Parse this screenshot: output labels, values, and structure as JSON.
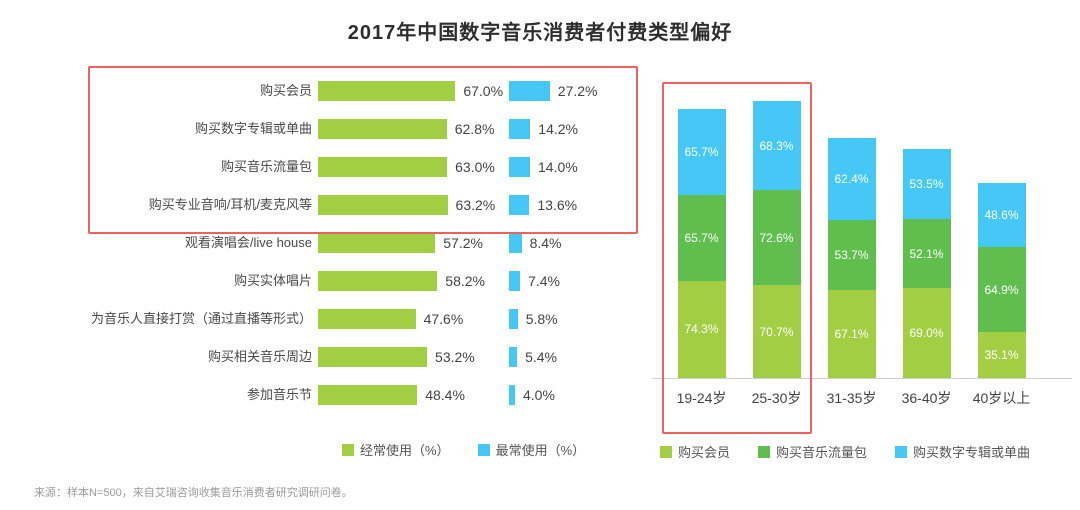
{
  "title": "2017年中国数字音乐消费者付费类型偏好",
  "footer": "来源：样本N=500，来自艾瑞咨询收集音乐消费者研究调研问卷。",
  "colors": {
    "green_light": "#a2ce44",
    "green_mid": "#5fbe4e",
    "blue": "#45c8f5",
    "highlight": "#f0605e"
  },
  "chart_data": [
    {
      "type": "bar",
      "orientation": "horizontal",
      "categories": [
        "购买会员",
        "购买数字专辑或单曲",
        "购买音乐流量包",
        "购买专业音响/耳机/麦克风等",
        "观看演唱会/live house",
        "购买实体唱片",
        "为音乐人直接打赏（通过直播等形式）",
        "购买相关音乐周边",
        "参加音乐节"
      ],
      "series": [
        {
          "name": "经常使用（%）",
          "color": "green_light",
          "values": [
            67.0,
            62.8,
            63.0,
            63.2,
            57.2,
            58.2,
            47.6,
            53.2,
            48.4
          ]
        },
        {
          "name": "最常使用（%）",
          "color": "blue",
          "values": [
            27.2,
            14.2,
            14.0,
            13.6,
            8.4,
            7.4,
            5.8,
            5.4,
            4.0
          ]
        }
      ],
      "highlight_rows": [
        0,
        1,
        2,
        3
      ],
      "value_suffix": "%",
      "legend_position": "bottom"
    },
    {
      "type": "bar",
      "subtype": "stacked",
      "categories": [
        "19-24岁",
        "25-30岁",
        "31-35岁",
        "36-40岁",
        "40岁以上"
      ],
      "series": [
        {
          "name": "购买会员",
          "color": "green_light",
          "values": [
            74.3,
            70.7,
            67.1,
            69.0,
            35.1
          ]
        },
        {
          "name": "购买音乐流量包",
          "color": "green_mid",
          "values": [
            65.7,
            72.6,
            53.7,
            52.1,
            64.9
          ]
        },
        {
          "name": "购买数字专辑或单曲",
          "color": "blue",
          "values": [
            65.7,
            68.3,
            62.4,
            53.5,
            48.6
          ]
        }
      ],
      "highlight_columns": [
        0,
        1
      ],
      "value_suffix": "%",
      "legend_position": "bottom"
    }
  ]
}
